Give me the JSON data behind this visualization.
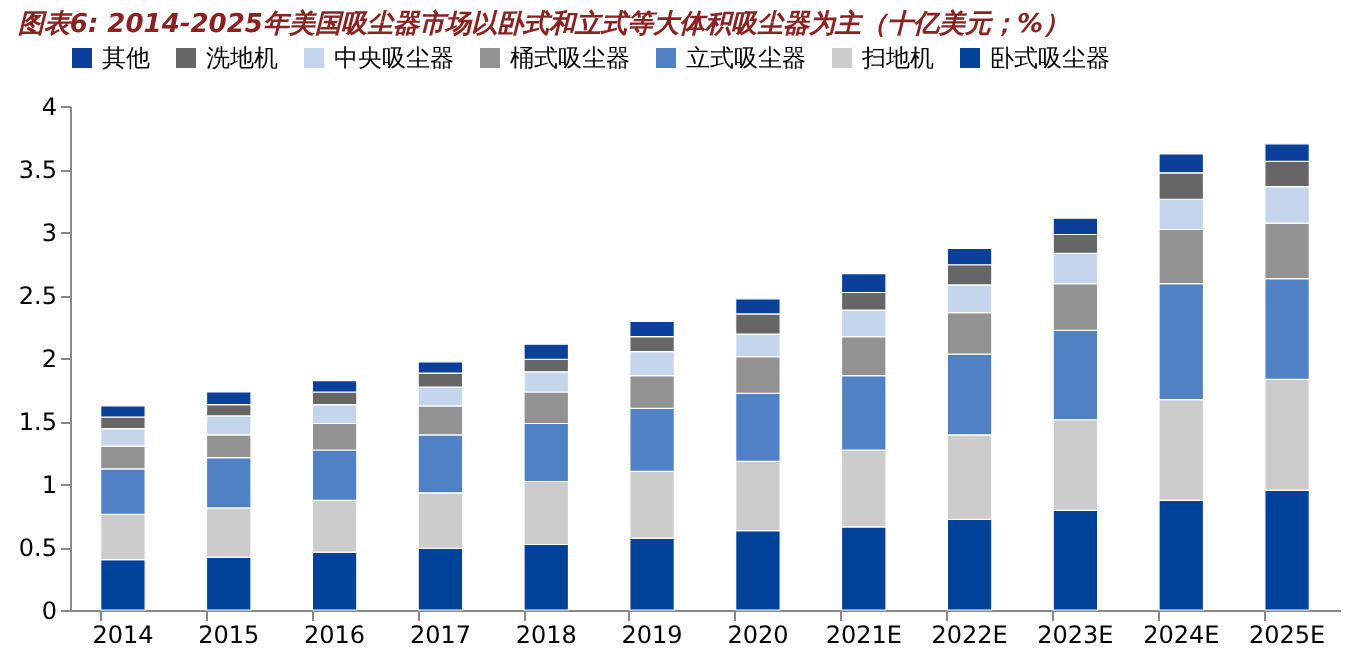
{
  "chart_data": {
    "type": "bar",
    "stacked": true,
    "title": "图表6: 2014-2025年美国吸尘器市场以卧式和立式等大体积吸尘器为主（十亿美元；%）",
    "categories": [
      "2014",
      "2015",
      "2016",
      "2017",
      "2018",
      "2019",
      "2020",
      "2021E",
      "2022E",
      "2023E",
      "2024E",
      "2025E"
    ],
    "series": [
      {
        "name": "卧式吸尘器",
        "color": "#00419a",
        "values": [
          0.4,
          0.42,
          0.46,
          0.49,
          0.52,
          0.57,
          0.63,
          0.66,
          0.72,
          0.79,
          0.87,
          0.95
        ]
      },
      {
        "name": "扫地机",
        "color": "#cccccc",
        "values": [
          0.36,
          0.39,
          0.41,
          0.44,
          0.5,
          0.53,
          0.55,
          0.61,
          0.67,
          0.72,
          0.8,
          0.88
        ]
      },
      {
        "name": "立式吸尘器",
        "color": "#4f81c4",
        "values": [
          0.36,
          0.4,
          0.4,
          0.46,
          0.46,
          0.5,
          0.54,
          0.59,
          0.64,
          0.71,
          0.92,
          0.8
        ]
      },
      {
        "name": "桶式吸尘器",
        "color": "#929292",
        "values": [
          0.18,
          0.18,
          0.21,
          0.23,
          0.25,
          0.26,
          0.29,
          0.31,
          0.33,
          0.37,
          0.43,
          0.44
        ]
      },
      {
        "name": "中央吸尘器",
        "color": "#c5d5ec",
        "values": [
          0.14,
          0.15,
          0.15,
          0.15,
          0.16,
          0.19,
          0.18,
          0.21,
          0.22,
          0.24,
          0.24,
          0.29
        ]
      },
      {
        "name": "洗地机",
        "color": "#666666",
        "values": [
          0.09,
          0.09,
          0.1,
          0.11,
          0.1,
          0.12,
          0.16,
          0.14,
          0.16,
          0.15,
          0.21,
          0.2
        ]
      },
      {
        "name": "其他",
        "color": "#0a3f9a",
        "values": [
          0.09,
          0.1,
          0.09,
          0.09,
          0.12,
          0.12,
          0.12,
          0.15,
          0.13,
          0.13,
          0.15,
          0.14
        ]
      }
    ],
    "ylim": [
      0,
      4
    ],
    "yticks": [
      0,
      0.5,
      1,
      1.5,
      2,
      2.5,
      3,
      3.5,
      4
    ],
    "grid": false,
    "legend": "top"
  }
}
